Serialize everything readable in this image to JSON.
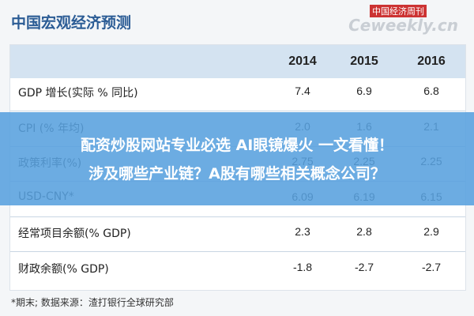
{
  "header": {
    "title": "中国宏观经济预测",
    "watermark_cn": "中国经济周刊",
    "watermark_en": "Ceweekly.cn"
  },
  "table": {
    "columns": [
      "2014",
      "2015",
      "2016"
    ],
    "rows": [
      [
        "GDP 增长(实际 % 同比)",
        "7.4",
        "6.9",
        "6.8"
      ],
      [
        "CPI (% 年均)",
        "2.0",
        "1.6",
        "2.1"
      ],
      [
        "政策利率(%)",
        "2.75",
        "2.25",
        "2.25"
      ],
      [
        "USD-CNY*",
        "6.09",
        "6.19",
        "6.15"
      ],
      [
        "经常项目余额(% GDP)",
        "2.3",
        "2.8",
        "2.9"
      ],
      [
        "财政余额(% GDP)",
        "-1.8",
        "-2.7",
        "-2.7"
      ]
    ]
  },
  "footnote": "*期末;   数据来源：渣打银行全球研究部",
  "banner": {
    "lines": [
      "配资炒股网站专业必选 AI眼镜爆火 一文看懂！",
      "涉及哪些产业链？A股有哪些相关概念公司？"
    ]
  }
}
